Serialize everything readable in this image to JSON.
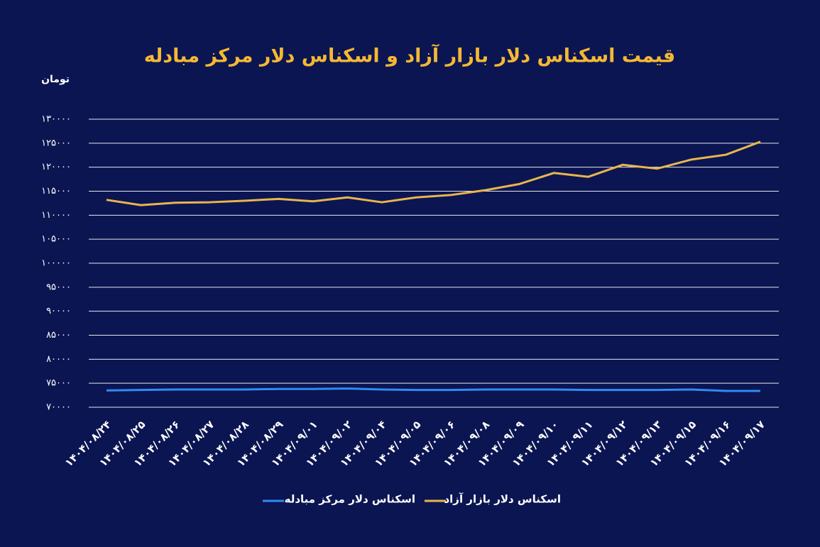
{
  "chart_data": {
    "type": "line",
    "title": "قیمت اسکناس دلار بازار آزاد و اسکناس دلار مرکز مبادله",
    "y_label": "تومان",
    "categories": [
      "۱۴۰۴/۰۸/۲۴",
      "۱۴۰۴/۰۸/۲۵",
      "۱۴۰۴/۰۸/۲۶",
      "۱۴۰۴/۰۸/۲۷",
      "۱۴۰۴/۰۸/۲۸",
      "۱۴۰۴/۰۸/۲۹",
      "۱۴۰۴/۰۹/۰۱",
      "۱۴۰۴/۰۹/۰۲",
      "۱۴۰۴/۰۹/۰۴",
      "۱۴۰۴/۰۹/۰۵",
      "۱۴۰۴/۰۹/۰۶",
      "۱۴۰۴/۰۹/۰۸",
      "۱۴۰۴/۰۹/۰۹",
      "۱۴۰۴/۰۹/۱۰",
      "۱۴۰۴/۰۹/۱۱",
      "۱۴۰۴/۰۹/۱۲",
      "۱۴۰۴/۰۹/۱۳",
      "۱۴۰۴/۰۹/۱۵",
      "۱۴۰۴/۰۹/۱۶",
      "۱۴۰۴/۰۹/۱۷"
    ],
    "series": [
      {
        "name": "اسکناس دلار مرکز مبادله",
        "color": "#2f8cf0",
        "values": [
          73500,
          73600,
          73700,
          73700,
          73700,
          73800,
          73800,
          73900,
          73700,
          73600,
          73600,
          73700,
          73700,
          73700,
          73600,
          73600,
          73600,
          73700,
          73400,
          73400
        ]
      },
      {
        "name": "اسکناس دلار بازار آزاد",
        "color": "#e9b54c",
        "values": [
          113200,
          112100,
          112600,
          112700,
          113000,
          113400,
          112900,
          113700,
          112700,
          113700,
          114200,
          115200,
          116500,
          118800,
          118000,
          120500,
          119700,
          121600,
          122600,
          125300
        ]
      }
    ],
    "ylim": [
      70000,
      130000
    ],
    "yticks": [
      {
        "value": 70000,
        "label": "۷۰۰۰۰"
      },
      {
        "value": 75000,
        "label": "۷۵۰۰۰"
      },
      {
        "value": 80000,
        "label": "۸۰۰۰۰"
      },
      {
        "value": 85000,
        "label": "۸۵۰۰۰"
      },
      {
        "value": 90000,
        "label": "۹۰۰۰۰"
      },
      {
        "value": 95000,
        "label": "۹۵۰۰۰"
      },
      {
        "value": 100000,
        "label": "۱۰۰۰۰۰"
      },
      {
        "value": 105000,
        "label": "۱۰۵۰۰۰"
      },
      {
        "value": 110000,
        "label": "۱۱۰۰۰۰"
      },
      {
        "value": 115000,
        "label": "۱۱۵۰۰۰"
      },
      {
        "value": 120000,
        "label": "۱۲۰۰۰۰"
      },
      {
        "value": 125000,
        "label": "۱۲۵۰۰۰"
      },
      {
        "value": 130000,
        "label": "۱۳۰۰۰۰"
      }
    ],
    "grid": true
  }
}
